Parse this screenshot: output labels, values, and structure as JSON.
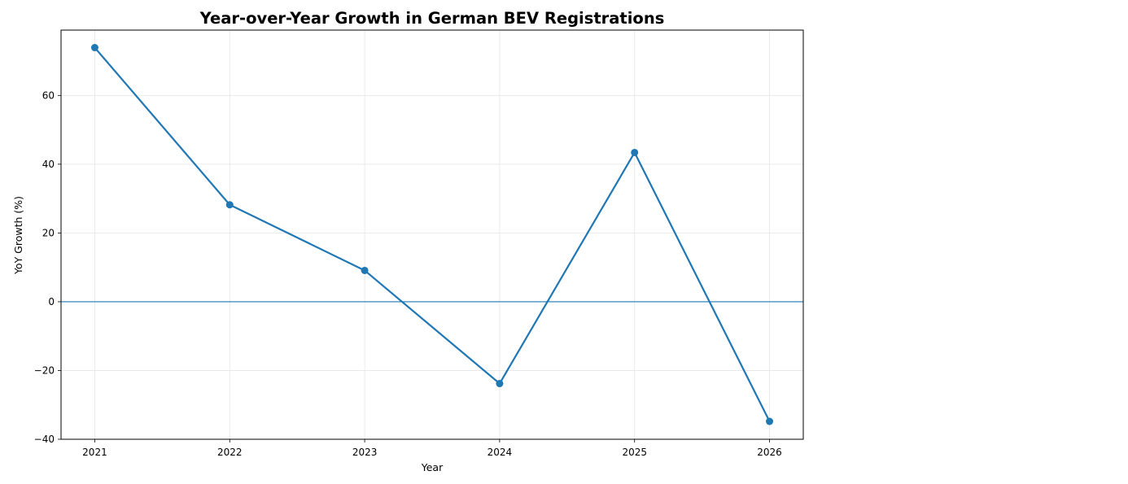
{
  "chart_data": {
    "type": "line",
    "title": "Year-over-Year Growth in German BEV Registrations",
    "xlabel": "Year",
    "ylabel": "YoY Growth (%)",
    "x": [
      2021,
      2022,
      2023,
      2024,
      2025,
      2026
    ],
    "x_tick_labels": [
      "2021",
      "2022",
      "2023",
      "2024",
      "2025",
      "2026"
    ],
    "xlim": [
      2020.75,
      2026.25
    ],
    "y_ticks": [
      -40,
      -20,
      0,
      20,
      40,
      60
    ],
    "y_tick_labels": [
      "−40",
      "−20",
      "0",
      "20",
      "40",
      "60"
    ],
    "ylim": [
      -40,
      79
    ],
    "series": [
      {
        "values": [
          73.9,
          28.2,
          9.1,
          -23.8,
          43.4,
          -34.8
        ]
      }
    ],
    "reference_line": {
      "y": 0
    },
    "grid": true,
    "colors": {
      "line": "#1f77b4",
      "grid": "#e6e6e6",
      "axis": "#000000"
    }
  }
}
